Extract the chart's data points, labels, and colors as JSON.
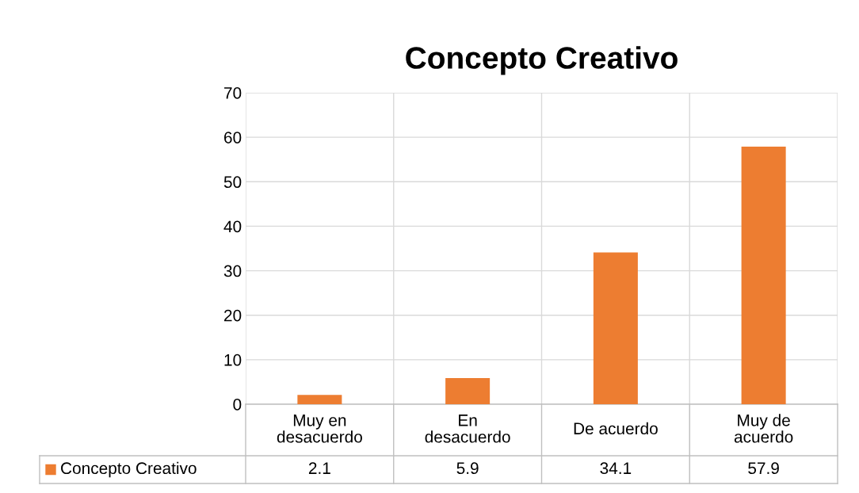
{
  "chart_data": {
    "type": "bar",
    "title": "Concepto Creativo",
    "categories": [
      "Muy en\ndesacuerdo",
      "En\ndesacuerdo",
      "De acuerdo",
      "Muy de\nacuerdo"
    ],
    "series": [
      {
        "name": "Concepto Creativo",
        "color": "#ed7d31",
        "values": [
          2.1,
          5.9,
          34.1,
          57.9
        ]
      }
    ],
    "ylim": [
      0,
      70
    ],
    "yticks": [
      0,
      10,
      20,
      30,
      40,
      50,
      60,
      70
    ],
    "grid": true,
    "data_labels": true
  }
}
